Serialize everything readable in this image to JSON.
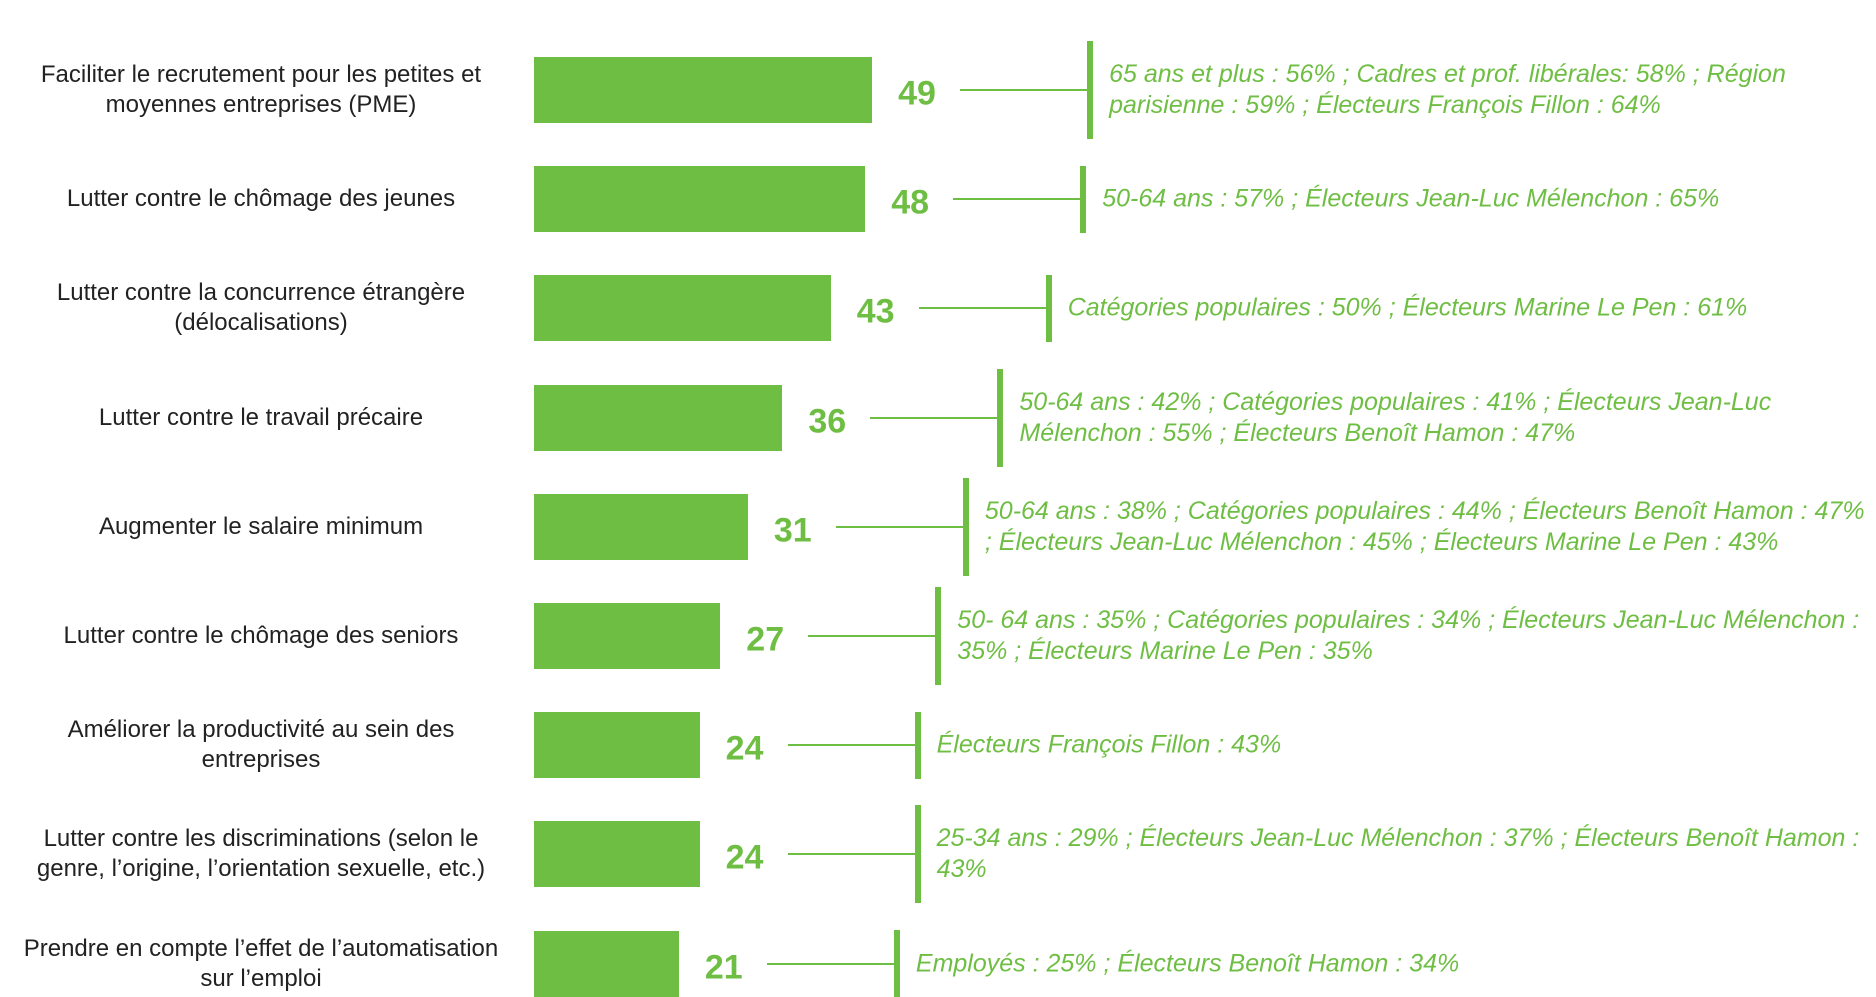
{
  "chart_data": {
    "type": "bar",
    "orientation": "horizontal",
    "color": "#6fbe44",
    "categories": [
      "Faciliter le recrutement pour les petites et moyennes entreprises (PME)",
      "Lutter contre le chômage des jeunes",
      "Lutter contre la concurrence étrangère (délocalisations)",
      "Lutter contre le travail précaire",
      "Augmenter le salaire minimum",
      "Lutter contre le chômage des seniors",
      "Améliorer la productivité au sein des entreprises",
      "Lutter contre les discriminations (selon le genre, l’origine, l’orientation sexuelle, etc.)",
      "Prendre en compte l’effet de l’automatisation sur l’emploi"
    ],
    "values": [
      49,
      48,
      43,
      36,
      31,
      27,
      24,
      24,
      21
    ],
    "annotations": [
      "65 ans et plus : 56% ; Cadres et prof. libérales: 58% ; Région parisienne : 59% ; Électeurs François Fillon : 64%",
      "50-64 ans : 57% ; Électeurs Jean-Luc Mélenchon : 65%",
      "Catégories populaires : 50% ; Électeurs Marine Le Pen : 61%",
      "50-64 ans : 42% ; Catégories populaires : 41% ; Électeurs Jean-Luc Mélenchon : 55% ; Électeurs Benoît Hamon : 47%",
      "50-64 ans : 38% ; Catégories populaires : 44% ; Électeurs Benoît Hamon : 47% ; Électeurs Jean-Luc Mélenchon : 45% ; Électeurs Marine Le Pen : 43%",
      "50- 64 ans : 35% ; Catégories populaires : 34% ; Électeurs Jean-Luc Mélenchon : 35% ; Électeurs Marine Le Pen : 35%",
      "Électeurs François Fillon : 43%",
      "25-34 ans : 29% ; Électeurs Jean-Luc Mélenchon : 37% ; Électeurs Benoît Hamon : 43%",
      "Employés : 25% ; Électeurs Benoît Hamon : 34%"
    ]
  }
}
